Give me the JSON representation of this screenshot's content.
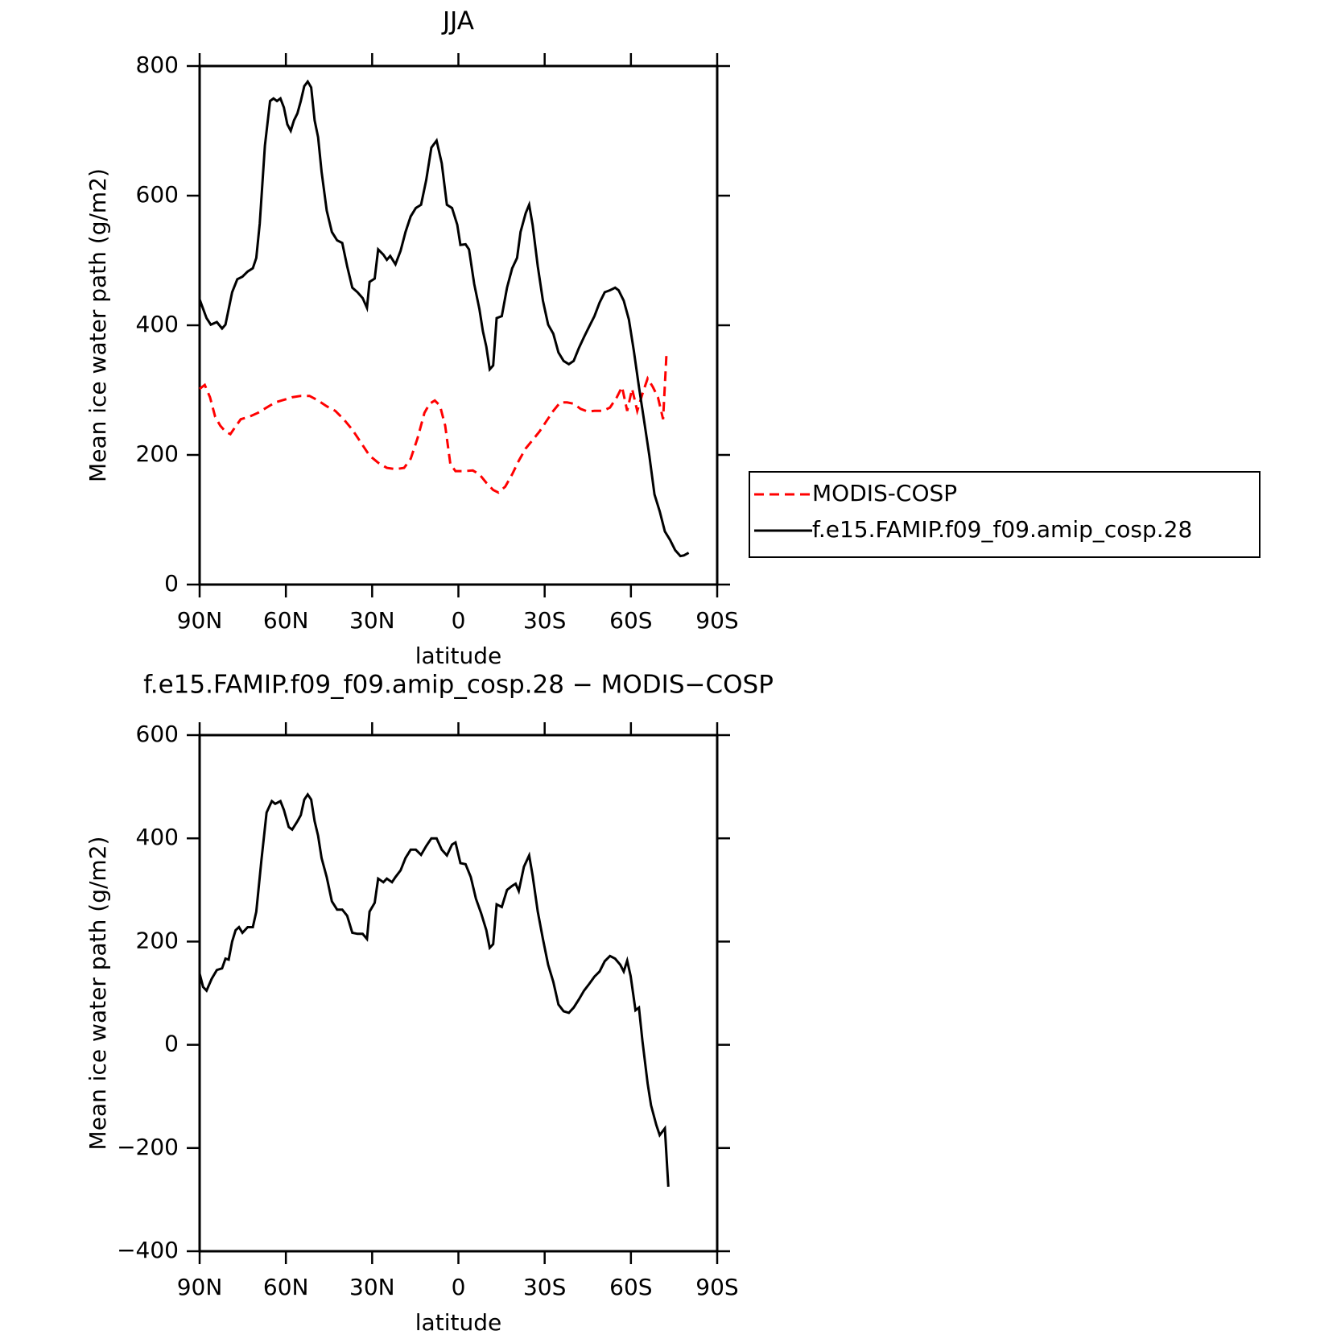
{
  "chart_data": [
    {
      "type": "line",
      "title": "JJA",
      "xlabel": "latitude",
      "ylabel": "Mean ice water path (g/m2)",
      "xlim": [
        90,
        -90
      ],
      "xticks": [
        {
          "value": 90,
          "label": "90N"
        },
        {
          "value": 60,
          "label": "60N"
        },
        {
          "value": 30,
          "label": "30N"
        },
        0,
        {
          "value": -30,
          "label": "30S"
        },
        {
          "value": -60,
          "label": "60S"
        },
        {
          "value": -90,
          "label": "90S"
        }
      ],
      "ylim": [
        0,
        800
      ],
      "yticks": [
        0,
        200,
        400,
        600,
        800
      ],
      "legend": "right",
      "series": [
        {
          "name": "MODIS-COSP",
          "color": "#ff0000",
          "linestyle": "dashed",
          "x": [
            90,
            88.2,
            86.4,
            84.6,
            82.8,
            81,
            79.3,
            77.5,
            75.7,
            72.7,
            69.7,
            66.7,
            63.7,
            60.7,
            57.8,
            54.8,
            51.8,
            48.8,
            45.8,
            42.8,
            39.9,
            36.9,
            33.9,
            30.9,
            27.9,
            24.9,
            21.9,
            18.9,
            16.6,
            14.2,
            11.8,
            10,
            8.2,
            6.4,
            4.6,
            2.8,
            1,
            -2,
            -5,
            -7.3,
            -9.7,
            -12.1,
            -13.9,
            -16.3,
            -18.7,
            -21,
            -23.4,
            -25.8,
            -28.2,
            -30.6,
            -33,
            -35.4,
            -37.8,
            -40.1,
            -42.5,
            -44.9,
            -47.3,
            -50.3,
            -52.7,
            -55.1,
            -56.9,
            -58.7,
            -60.4,
            -62.2,
            -64,
            -65.8,
            -67.6,
            -69.4,
            -71.2,
            -72.4
          ],
          "values": [
            302,
            308,
            289,
            259,
            245,
            236,
            232,
            244,
            255,
            259,
            265,
            273,
            281,
            285,
            289,
            291,
            291,
            284,
            275,
            268,
            255,
            239,
            219,
            199,
            188,
            180,
            178,
            180,
            194,
            226,
            265,
            279,
            284,
            276,
            245,
            186,
            175,
            175,
            176,
            170,
            157,
            146,
            142,
            151,
            170,
            191,
            210,
            223,
            236,
            252,
            268,
            281,
            281,
            279,
            271,
            267,
            268,
            268,
            273,
            289,
            305,
            268,
            302,
            268,
            294,
            318,
            305,
            289,
            255,
            358
          ]
        },
        {
          "name": "f.e15.FAMIP.f09_f09.amip_cosp.28",
          "color": "#000000",
          "linestyle": "solid",
          "x": [
            90,
            87.6,
            86.1,
            84,
            82.2,
            81,
            78.7,
            76.9,
            75.1,
            73.3,
            71.5,
            70.3,
            69.1,
            67.3,
            65.5,
            64.3,
            63.1,
            61.9,
            60.7,
            59.5,
            58.3,
            57.2,
            56,
            54.8,
            53.6,
            52.4,
            51.2,
            50,
            48.8,
            47.6,
            45.8,
            44,
            42.2,
            40.4,
            38.7,
            36.9,
            35.1,
            33.3,
            31.8,
            30.9,
            29.1,
            27.9,
            26.1,
            24.9,
            23.7,
            21.9,
            20.1,
            18.4,
            16.6,
            14.8,
            13,
            11.2,
            9.4,
            7.6,
            5.8,
            4,
            2.2,
            0.4,
            -0.7,
            -2.5,
            -3.7,
            -5.5,
            -7.3,
            -8.5,
            -9.7,
            -10.9,
            -12.1,
            -13.3,
            -15.1,
            -16.9,
            -18.7,
            -20.4,
            -21.6,
            -23.4,
            -24.6,
            -25.8,
            -27.6,
            -29.4,
            -31.2,
            -33,
            -34.8,
            -36.6,
            -38.4,
            -40.1,
            -41.9,
            -43.7,
            -45.5,
            -47.3,
            -49.1,
            -50.9,
            -52.7,
            -54.5,
            -55.7,
            -57.5,
            -59.3,
            -61,
            -62.8,
            -64.6,
            -66.4,
            -68.2,
            -70,
            -71.8,
            -73.6,
            -75.4,
            -77.2,
            -78.4,
            -80.1
          ],
          "values": [
            440,
            411,
            401,
            405,
            395,
            401,
            451,
            471,
            475,
            483,
            488,
            504,
            557,
            677,
            746,
            750,
            746,
            750,
            736,
            710,
            700,
            716,
            727,
            746,
            769,
            776,
            767,
            716,
            690,
            637,
            577,
            544,
            531,
            527,
            491,
            458,
            451,
            442,
            427,
            467,
            472,
            517,
            509,
            501,
            507,
            494,
            515,
            544,
            568,
            581,
            586,
            624,
            674,
            685,
            650,
            586,
            581,
            555,
            524,
            525,
            517,
            464,
            425,
            391,
            367,
            332,
            338,
            411,
            414,
            458,
            488,
            504,
            544,
            573,
            586,
            555,
            491,
            438,
            401,
            387,
            358,
            345,
            340,
            345,
            365,
            382,
            398,
            414,
            435,
            451,
            454,
            458,
            454,
            438,
            409,
            361,
            305,
            252,
            199,
            139,
            113,
            82,
            69,
            53,
            44,
            45,
            49
          ]
        }
      ]
    },
    {
      "type": "line",
      "title": "f.e15.FAMIP.f09_f09.amip_cosp.28 − MODIS−COSP",
      "xlabel": "latitude",
      "ylabel": "Mean ice water path (g/m2)",
      "xlim": [
        90,
        -90
      ],
      "xticks": [
        {
          "value": 90,
          "label": "90N"
        },
        {
          "value": 60,
          "label": "60N"
        },
        {
          "value": 30,
          "label": "30N"
        },
        0,
        {
          "value": -30,
          "label": "30S"
        },
        {
          "value": -60,
          "label": "60S"
        },
        {
          "value": -90,
          "label": "90S"
        }
      ],
      "ylim": [
        -400,
        600
      ],
      "yticks": [
        {
          "value": -400,
          "label": "−400"
        },
        {
          "value": -200,
          "label": "−200"
        },
        0,
        200,
        400,
        600
      ],
      "series": [
        {
          "color": "#000000",
          "linestyle": "solid",
          "x": [
            90,
            88.8,
            87.6,
            85.8,
            84,
            82.2,
            81,
            79.9,
            78.7,
            77.5,
            76.3,
            75.1,
            73.3,
            71.5,
            70.3,
            68.5,
            66.7,
            64.9,
            63.7,
            61.9,
            60.7,
            59,
            57.8,
            56,
            54.8,
            53.6,
            52.4,
            51.2,
            50,
            48.8,
            47.6,
            45.8,
            44,
            42.2,
            40.4,
            38.7,
            36.9,
            35.1,
            33.3,
            31.8,
            30.9,
            29.1,
            27.9,
            26.1,
            24.9,
            23.1,
            21.9,
            20.1,
            18.4,
            16.6,
            14.8,
            13,
            11.2,
            9.4,
            7.6,
            5.8,
            4,
            2.2,
            1,
            -0.7,
            -2.5,
            -4.3,
            -6.1,
            -7.9,
            -9.7,
            -10.9,
            -12.1,
            -13.3,
            -15.1,
            -16.9,
            -18.7,
            -19.9,
            -21,
            -22.8,
            -24.6,
            -25.8,
            -27.6,
            -29.4,
            -31.2,
            -33,
            -34.8,
            -36.6,
            -38.4,
            -40.1,
            -41.9,
            -43.7,
            -45.5,
            -47.3,
            -49.1,
            -50.9,
            -52.7,
            -54.5,
            -56.3,
            -57.5,
            -58.7,
            -59.9,
            -61.6,
            -62.8,
            -64,
            -65.8,
            -67,
            -68.8,
            -70,
            -71.8,
            -73
          ],
          "values": [
            138,
            112,
            105,
            128,
            145,
            148,
            167,
            165,
            200,
            222,
            228,
            217,
            228,
            228,
            258,
            358,
            450,
            472,
            467,
            472,
            455,
            422,
            417,
            433,
            445,
            475,
            485,
            475,
            433,
            405,
            362,
            325,
            278,
            262,
            262,
            250,
            217,
            215,
            215,
            205,
            258,
            275,
            322,
            315,
            322,
            315,
            325,
            338,
            362,
            378,
            378,
            368,
            385,
            400,
            400,
            378,
            367,
            388,
            392,
            352,
            350,
            325,
            283,
            255,
            222,
            188,
            195,
            272,
            267,
            300,
            308,
            312,
            298,
            345,
            367,
            328,
            258,
            205,
            155,
            122,
            78,
            65,
            62,
            72,
            88,
            105,
            118,
            132,
            142,
            162,
            172,
            167,
            155,
            142,
            163,
            133,
            67,
            72,
            8,
            -75,
            -117,
            -155,
            -175,
            -162,
            -275
          ]
        }
      ]
    }
  ]
}
